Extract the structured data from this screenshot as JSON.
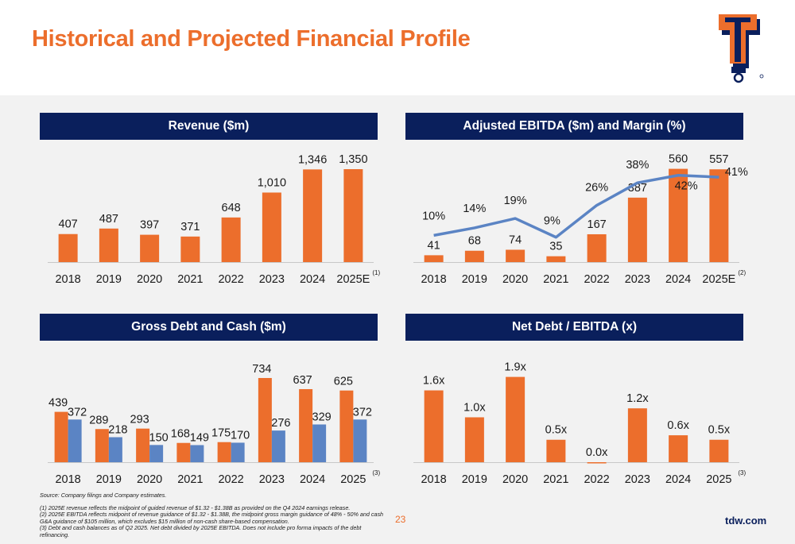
{
  "page": {
    "title": "Historical and Projected Financial Profile",
    "page_number": "23",
    "website": "tdw.com",
    "source": "Source: Company filings and Company estimates.",
    "footnotes": [
      "(1) 2025E revenue reflects the midpoint of guided revenue of $1.32 - $1.38B as provided on the Q4 2024 earnings release.",
      "(2) 2025E EBITDA reflects midpoint of revenue guidance of $1.32 - $1.38B, the midpoint gross margin guidance of 48% - 50% and cash G&A guidance of $105 million, which excludes $15 million of non-cash share-based compensation.",
      "(3) Debt and cash balances as of Q2 2025. Net debt divided by 2025E EBITDA. Does not include pro forma impacts of the debt refinancing."
    ],
    "logo": "tidewater-logo",
    "colors": {
      "orange": "#ec6e2c",
      "blue": "#5b84c4",
      "navy": "#0a1f5c"
    }
  },
  "chart_data": [
    {
      "type": "bar",
      "title": "Revenue ($m)",
      "categories": [
        "2018",
        "2019",
        "2020",
        "2021",
        "2022",
        "2023",
        "2024",
        "2025E"
      ],
      "series": [
        {
          "values": [
            407,
            487,
            397,
            371,
            648,
            1010,
            1346,
            1350
          ],
          "labels": [
            "407",
            "487",
            "397",
            "371",
            "648",
            "1,010",
            "1,346",
            "1,350"
          ]
        }
      ],
      "ylim": [
        0,
        1500
      ],
      "footnote_marker": "(1)"
    },
    {
      "type": "bar+line",
      "title": "Adjusted EBITDA ($m) and Margin (%)",
      "categories": [
        "2018",
        "2019",
        "2020",
        "2021",
        "2022",
        "2023",
        "2024",
        "2025E"
      ],
      "series": [
        {
          "values": [
            41,
            68,
            74,
            35,
            167,
            387,
            560,
            557
          ],
          "labels": [
            "41",
            "68",
            "74",
            "35",
            "167",
            "387",
            "560",
            "557"
          ]
        },
        {
          "type": "line",
          "values": [
            10,
            14,
            19,
            9,
            26,
            38,
            42,
            41
          ],
          "labels": [
            "10%",
            "14%",
            "19%",
            "9%",
            "26%",
            "38%",
            "42%",
            "41%"
          ]
        }
      ],
      "ylim": [
        0,
        620
      ],
      "footnote_marker": "(2)"
    },
    {
      "type": "bar",
      "title": "Gross Debt and Cash ($m)",
      "categories": [
        "2018",
        "2019",
        "2020",
        "2021",
        "2022",
        "2023",
        "2024",
        "2025"
      ],
      "series": [
        {
          "values": [
            439,
            289,
            293,
            168,
            175,
            734,
            637,
            625
          ],
          "labels": [
            "439",
            "289",
            "293",
            "168",
            "175",
            "734",
            "637",
            "625"
          ]
        },
        {
          "values": [
            372,
            218,
            150,
            149,
            170,
            276,
            329,
            372
          ],
          "labels": [
            "372",
            "218",
            "150",
            "149",
            "170",
            "276",
            "329",
            "372"
          ]
        }
      ],
      "ylim": [
        0,
        900
      ],
      "footnote_marker": "(3)"
    },
    {
      "type": "bar",
      "title": "Net Debt / EBITDA (x)",
      "categories": [
        "2018",
        "2019",
        "2020",
        "2021",
        "2022",
        "2023",
        "2024",
        "2025"
      ],
      "series": [
        {
          "values": [
            1.6,
            1.0,
            1.9,
            0.5,
            0.0,
            1.2,
            0.6,
            0.5
          ],
          "labels": [
            "1.6x",
            "1.0x",
            "1.9x",
            "0.5x",
            "0.0x",
            "1.2x",
            "0.6x",
            "0.5x"
          ]
        }
      ],
      "ylim": [
        0,
        2.3
      ],
      "footnote_marker": "(3)"
    }
  ]
}
